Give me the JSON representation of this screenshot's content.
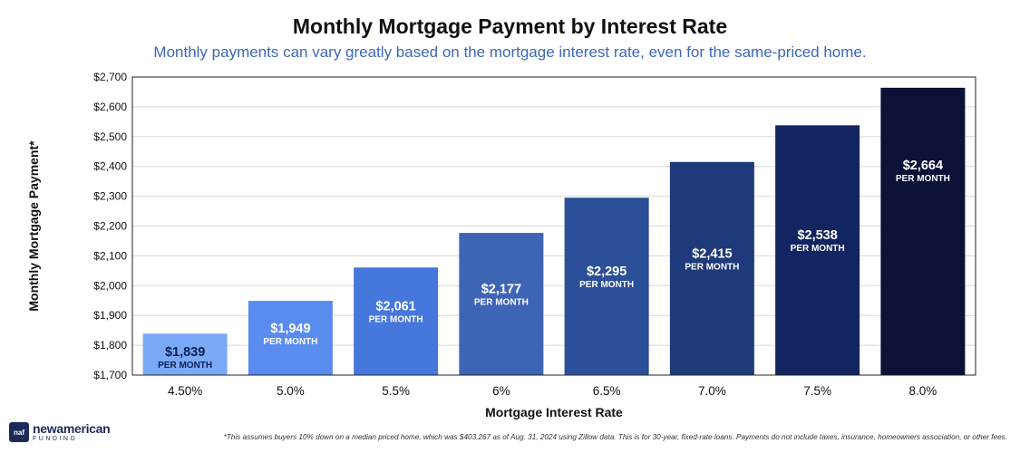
{
  "title": "Monthly Mortgage Payment by Interest Rate",
  "subtitle": "Monthly payments can vary greatly based on the mortgage interest rate, even for the same-priced home.",
  "footnote": "*This assumes buyers 10% down on a median  priced home, which was $403,267 as of Aug. 31, 2024 using Zillow data. This is for 30-year, fixed-rate loans. Payments do not include taxes, insurance, homeowners association, or other fees.",
  "brand": {
    "mark": "naf",
    "name": "newamerican",
    "sub": "FUNDING"
  },
  "chart_data": {
    "type": "bar",
    "title": "Monthly Mortgage Payment by Interest Rate",
    "subtitle": "Monthly payments can vary greatly based on the mortgage interest rate, even for the same-priced home.",
    "xlabel": "Mortgage Interest Rate",
    "ylabel": "Monthly Mortgage Payment*",
    "categories": [
      "4.50%",
      "5.0%",
      "5.5%",
      "6%",
      "6.5%",
      "7.0%",
      "7.5%",
      "8.0%"
    ],
    "values": [
      1839,
      1949,
      2061,
      2177,
      2295,
      2415,
      2538,
      2664
    ],
    "data_labels": [
      "$1,839",
      "$1,949",
      "$2,061",
      "$2,177",
      "$2,295",
      "$2,415",
      "$2,538",
      "$2,664"
    ],
    "data_sublabel": "PER MONTH",
    "ylim": [
      1700,
      2700
    ],
    "yticks": [
      1700,
      1800,
      1900,
      2000,
      2100,
      2200,
      2300,
      2400,
      2500,
      2600,
      2700
    ],
    "ytick_labels": [
      "$1,700",
      "$1,800",
      "$1,900",
      "$2,000",
      "$2,100",
      "$2,200",
      "$2,300",
      "$2,400",
      "$2,500",
      "$2,600",
      "$2,700"
    ],
    "grid": true,
    "legend": "none",
    "colors": [
      "#7aa9f7",
      "#5a8cf0",
      "#4677dc",
      "#3e64b6",
      "#2b4f98",
      "#1f3a7a",
      "#122560",
      "#0b1137"
    ]
  }
}
